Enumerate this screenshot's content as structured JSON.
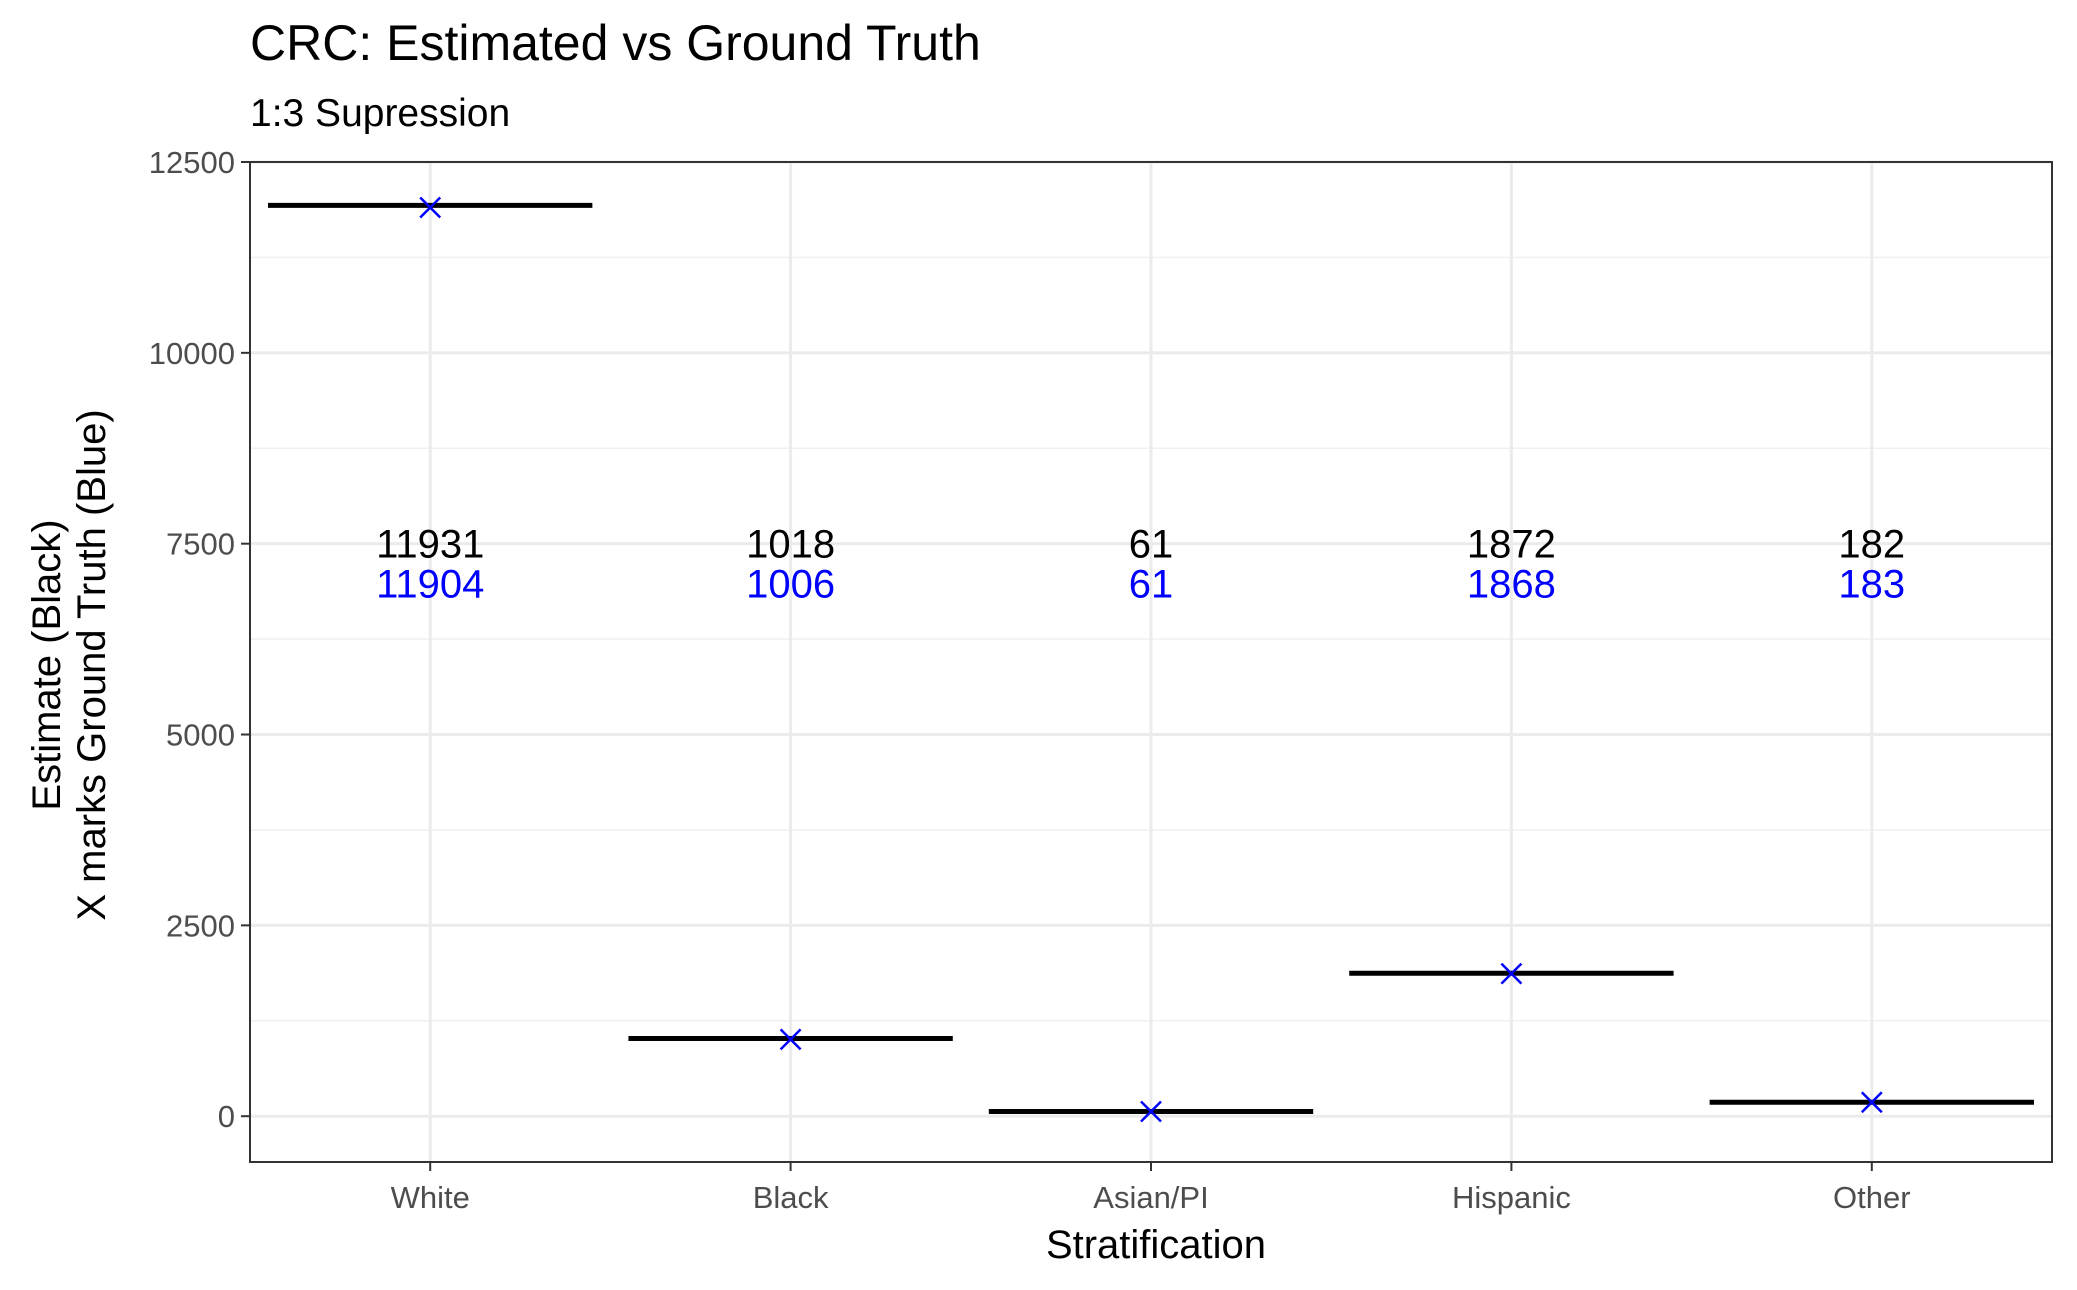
{
  "chart_data": {
    "type": "scatter",
    "title": "CRC: Estimated vs Ground Truth",
    "subtitle": "1:3 Supression",
    "xlabel": "Stratification",
    "ylabel_line1": "Estimate (Black)",
    "ylabel_line2": "X marks Ground Truth (Blue)",
    "categories": [
      "White",
      "Black",
      "Asian/PI",
      "Hispanic",
      "Other"
    ],
    "series": [
      {
        "name": "Estimate",
        "color": "#000000",
        "marker": "crossbar",
        "values": [
          11931,
          1018,
          61,
          1872,
          182
        ]
      },
      {
        "name": "Ground Truth",
        "color": "#0000ff",
        "marker": "x",
        "values": [
          11904,
          1006,
          61,
          1868,
          183
        ]
      }
    ],
    "estimate_labels": [
      "11931",
      "1018",
      "61",
      "1872",
      "182"
    ],
    "truth_labels": [
      "11904",
      "1006",
      "61",
      "1868",
      "183"
    ],
    "label_y": 7500,
    "ylim": [
      -600,
      12500
    ],
    "yticks": [
      0,
      2500,
      5000,
      7500,
      10000,
      12500
    ],
    "ytick_labels": [
      "0",
      "2500",
      "5000",
      "7500",
      "10000",
      "12500"
    ],
    "grid": true,
    "legend": "none"
  }
}
